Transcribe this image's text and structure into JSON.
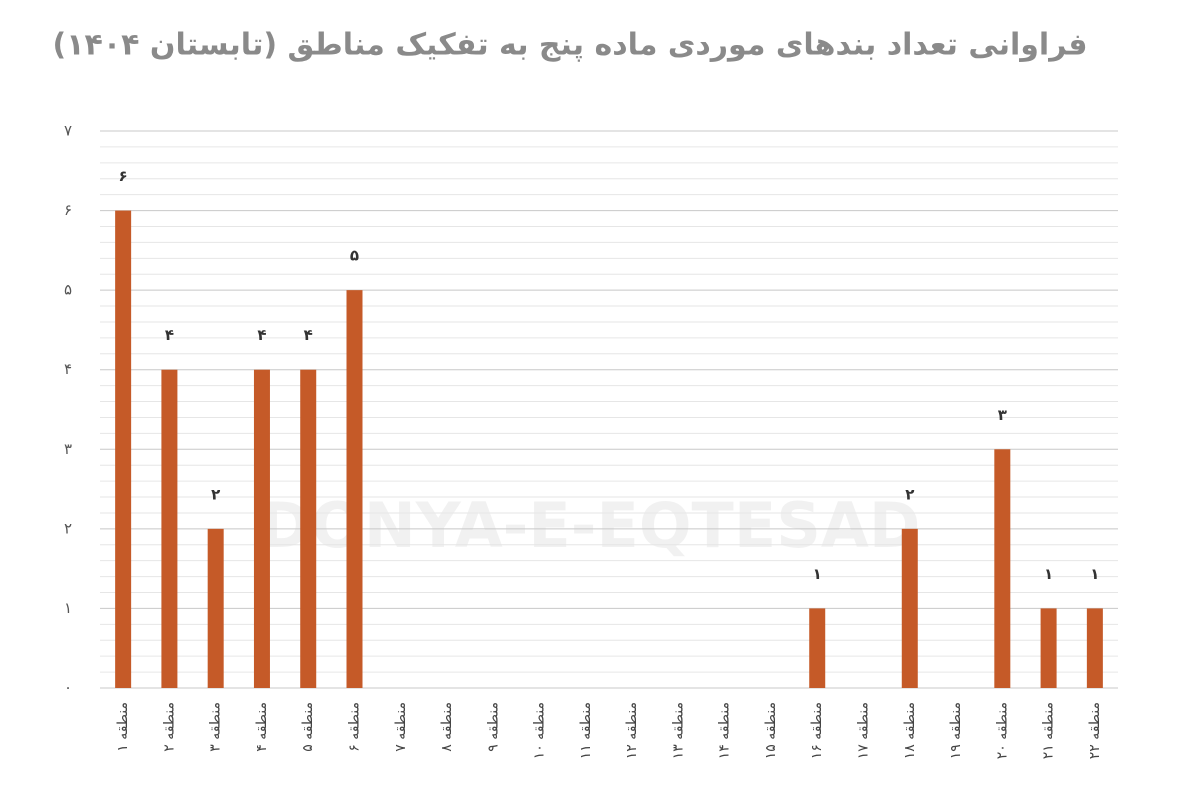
{
  "chart_data": {
    "type": "bar",
    "title": "فراوانی تعداد بندهای موردی ماده پنج به تفکیک مناطق (تابستان ۱۴۰۴)",
    "watermark": "DONYA-E-EQTESAD",
    "categories": [
      "منطقه ۱",
      "منطقه ۲",
      "منطقه ۳",
      "منطقه ۴",
      "منطقه ۵",
      "منطقه ۶",
      "منطقه ۷",
      "منطقه ۸",
      "منطقه ۹",
      "منطقه ۱۰",
      "منطقه ۱۱",
      "منطقه ۱۲",
      "منطقه ۱۳",
      "منطقه ۱۴",
      "منطقه ۱۵",
      "منطقه ۱۶",
      "منطقه ۱۷",
      "منطقه ۱۸",
      "منطقه ۱۹",
      "منطقه ۲۰",
      "منطقه ۲۱",
      "منطقه ۲۲"
    ],
    "values": [
      6,
      4,
      2,
      4,
      4,
      5,
      0,
      0,
      0,
      0,
      0,
      0,
      0,
      0,
      0,
      1,
      0,
      2,
      0,
      3,
      1,
      1
    ],
    "value_labels": [
      "۶",
      "۴",
      "۲",
      "۴",
      "۴",
      "۵",
      null,
      null,
      null,
      null,
      null,
      null,
      null,
      null,
      null,
      "۱",
      null,
      "۲",
      null,
      "۳",
      "۱",
      "۱"
    ],
    "color": "#c55a28",
    "ylim": [
      0,
      7
    ],
    "yticks": [
      {
        "value": 0,
        "label": "۰"
      },
      {
        "value": 1,
        "label": "۱"
      },
      {
        "value": 2,
        "label": "۲"
      },
      {
        "value": 3,
        "label": "۳"
      },
      {
        "value": 4,
        "label": "۴"
      },
      {
        "value": 5,
        "label": "۵"
      },
      {
        "value": 6,
        "label": "۶"
      },
      {
        "value": 7,
        "label": "۷"
      }
    ],
    "grid": true,
    "minor_grid": true
  }
}
